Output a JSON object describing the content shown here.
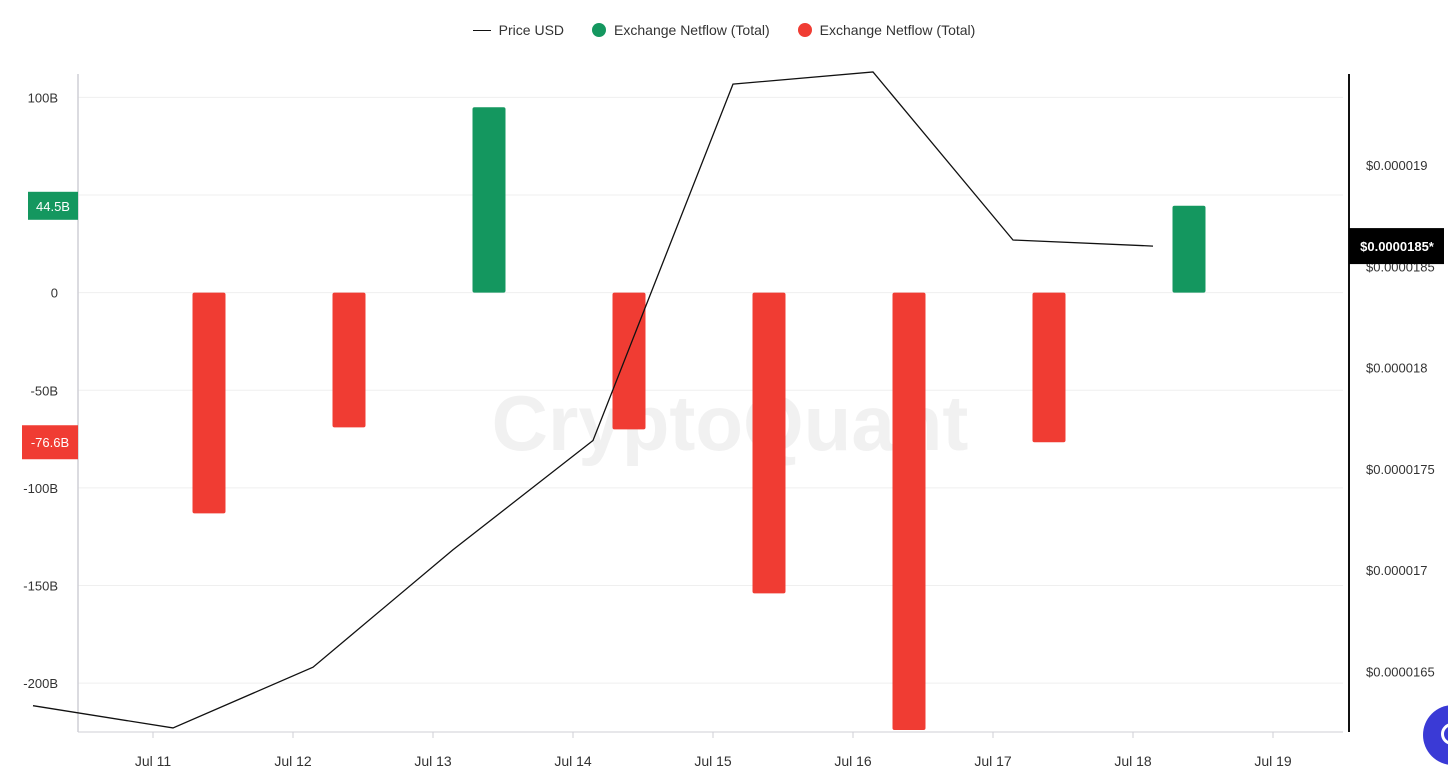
{
  "legend": {
    "price_label": "Price USD",
    "inflow_label": "Exchange Netflow (Total)",
    "outflow_label": "Exchange Netflow (Total)"
  },
  "colors": {
    "positive": "#14975f",
    "negative": "#f03c33",
    "price_line": "#111111",
    "price_badge": "#000000"
  },
  "watermark": "CryptoQuant",
  "left_badges": {
    "positive_value": "44.5B",
    "negative_value": "-76.6B"
  },
  "right_badge": "$0.0000185*",
  "chart_data": {
    "type": "bar",
    "x_ticks": [
      "Jul 11",
      "Jul 12",
      "Jul 13",
      "Jul 14",
      "Jul 15",
      "Jul 16",
      "Jul 17",
      "Jul 18",
      "Jul 19"
    ],
    "left_axis": {
      "ticks": [
        100,
        50,
        0,
        -50,
        -100,
        -150,
        -200
      ],
      "tick_labels": [
        "100B",
        "",
        "0",
        "-50B",
        "-100B",
        "-150B",
        "-200B"
      ],
      "range": [
        -225,
        112
      ],
      "unit": "B"
    },
    "right_axis": {
      "ticks": [
        1.9e-05,
        1.85e-05,
        1.8e-05,
        1.75e-05,
        1.7e-05,
        1.65e-05
      ],
      "tick_labels": [
        "$0.000019",
        "$0.0000185",
        "$0.000018",
        "$0.0000175",
        "$0.000017",
        "$0.0000165"
      ],
      "range": [
        1.62e-05,
        1.945e-05
      ]
    },
    "netflow_bars": [
      {
        "date": "Jul 11",
        "value": -113
      },
      {
        "date": "Jul 12",
        "value": -69
      },
      {
        "date": "Jul 13",
        "value": 95
      },
      {
        "date": "Jul 14",
        "value": -70
      },
      {
        "date": "Jul 15",
        "value": -154
      },
      {
        "date": "Jul 16",
        "value": -224
      },
      {
        "date": "Jul 17",
        "value": -76.6
      },
      {
        "date": "Jul 18",
        "value": 44.5
      }
    ],
    "price_series": [
      {
        "date": "Jul 10",
        "value": 1.633e-05
      },
      {
        "date": "Jul 11",
        "value": 1.622e-05
      },
      {
        "date": "Jul 12",
        "value": 1.652e-05
      },
      {
        "date": "Jul 13",
        "value": 1.71e-05
      },
      {
        "date": "Jul 14",
        "value": 1.764e-05
      },
      {
        "date": "Jul 15",
        "value": 1.94e-05
      },
      {
        "date": "Jul 16",
        "value": 1.946e-05
      },
      {
        "date": "Jul 17",
        "value": 1.863e-05
      },
      {
        "date": "Jul 18",
        "value": 1.86e-05
      }
    ]
  }
}
